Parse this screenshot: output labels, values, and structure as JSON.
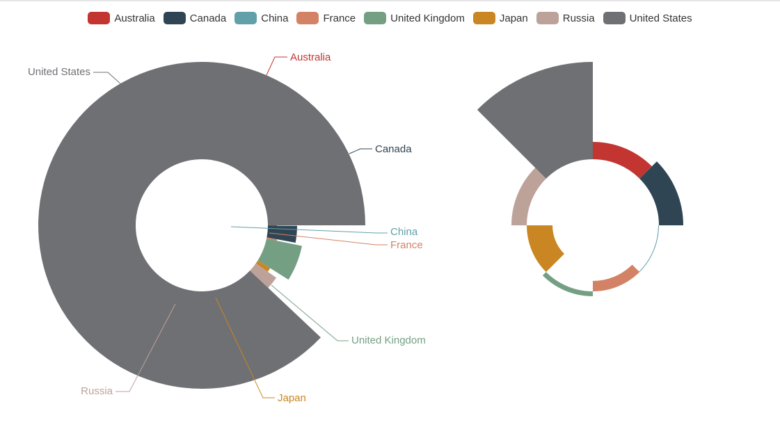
{
  "legend": {
    "items": [
      {
        "label": "Australia",
        "color": "#c23531"
      },
      {
        "label": "Canada",
        "color": "#2f4554"
      },
      {
        "label": "China",
        "color": "#61a0a8"
      },
      {
        "label": "France",
        "color": "#d48265"
      },
      {
        "label": "United Kingdom",
        "color": "#749f83"
      },
      {
        "label": "Japan",
        "color": "#ca8622"
      },
      {
        "label": "Russia",
        "color": "#bda29a"
      },
      {
        "label": "United States",
        "color": "#6e7074"
      }
    ]
  },
  "chart_data": [
    {
      "type": "pie",
      "variant": "rose-radius",
      "title": "",
      "categories": [
        "Australia",
        "Canada",
        "China",
        "France",
        "United Kingdom",
        "Japan",
        "Russia",
        "United States"
      ],
      "values": [
        0.3,
        10,
        0.1,
        1,
        20,
        3,
        8,
        310
      ],
      "colors": [
        "#c23531",
        "#2f4554",
        "#61a0a8",
        "#d48265",
        "#749f83",
        "#ca8622",
        "#bda29a",
        "#6e7074"
      ],
      "labels_shown": true
    },
    {
      "type": "pie",
      "variant": "rose-area",
      "title": "",
      "categories": [
        "Australia",
        "Canada",
        "China",
        "France",
        "United Kingdom",
        "Japan",
        "Russia",
        "United States"
      ],
      "values": [
        10,
        10,
        10,
        10,
        10,
        10,
        10,
        10
      ],
      "relative_radius": [
        120,
        130,
        94,
        80,
        102,
        58,
        117,
        235
      ],
      "colors": [
        "#c23531",
        "#2f4554",
        "#61a0a8",
        "#d48265",
        "#749f83",
        "#ca8622",
        "#bda29a",
        "#6e7074"
      ],
      "labels_shown": false
    }
  ]
}
